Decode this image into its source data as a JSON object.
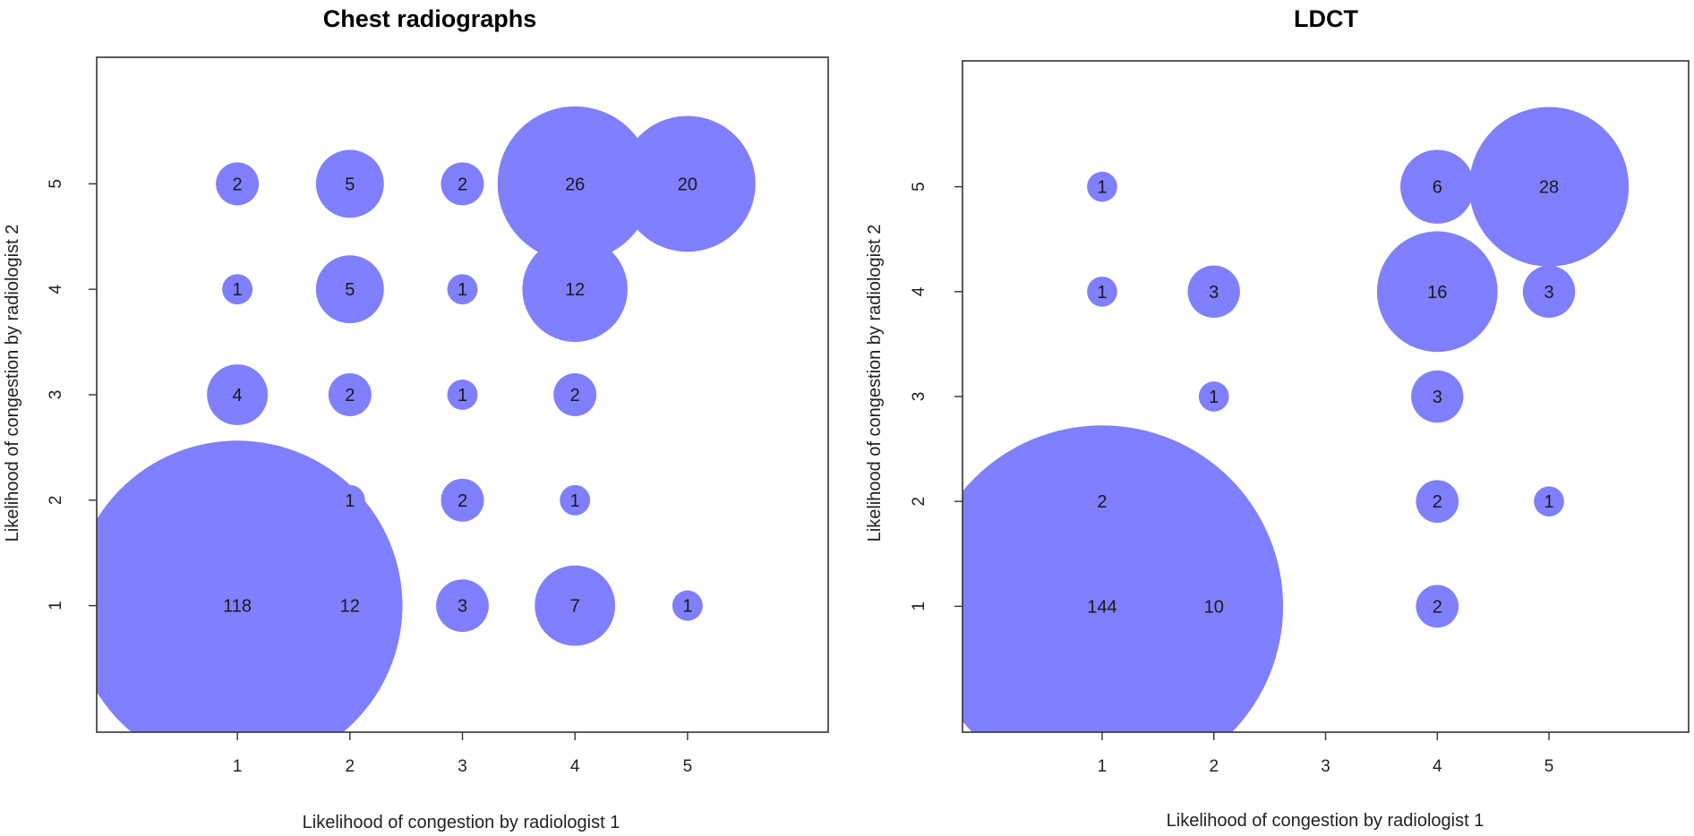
{
  "chart_data": [
    {
      "type": "bubble",
      "title": "Chest radiographs",
      "xlabel": "Likelihood of congestion by radiologist 1",
      "ylabel": "Likelihood of congestion by radiologist 2",
      "xticks": [
        1,
        2,
        3,
        4,
        5
      ],
      "yticks": [
        1,
        2,
        3,
        4,
        5
      ],
      "xlim": [
        -0.25,
        6.25
      ],
      "ylim": [
        -0.2,
        6.2
      ],
      "bubble_color": "#7f7fff",
      "points": [
        {
          "x": 1,
          "y": 5,
          "n": 2
        },
        {
          "x": 2,
          "y": 5,
          "n": 5
        },
        {
          "x": 3,
          "y": 5,
          "n": 2
        },
        {
          "x": 4,
          "y": 5,
          "n": 26
        },
        {
          "x": 5,
          "y": 5,
          "n": 20
        },
        {
          "x": 1,
          "y": 4,
          "n": 1
        },
        {
          "x": 2,
          "y": 4,
          "n": 5
        },
        {
          "x": 3,
          "y": 4,
          "n": 1
        },
        {
          "x": 4,
          "y": 4,
          "n": 12
        },
        {
          "x": 1,
          "y": 3,
          "n": 4
        },
        {
          "x": 2,
          "y": 3,
          "n": 2
        },
        {
          "x": 3,
          "y": 3,
          "n": 1
        },
        {
          "x": 4,
          "y": 3,
          "n": 2
        },
        {
          "x": 2,
          "y": 2,
          "n": 1
        },
        {
          "x": 3,
          "y": 2,
          "n": 2
        },
        {
          "x": 4,
          "y": 2,
          "n": 1
        },
        {
          "x": 1,
          "y": 1,
          "n": 118
        },
        {
          "x": 2,
          "y": 1,
          "n": 12
        },
        {
          "x": 3,
          "y": 1,
          "n": 3
        },
        {
          "x": 4,
          "y": 1,
          "n": 7
        },
        {
          "x": 5,
          "y": 1,
          "n": 1
        }
      ]
    },
    {
      "type": "bubble",
      "title": "LDCT",
      "xlabel": "Likelihood of congestion by radiologist 1",
      "ylabel": "Likelihood of congestion by radiologist 2",
      "xticks": [
        1,
        2,
        3,
        4,
        5
      ],
      "yticks": [
        1,
        2,
        3,
        4,
        5
      ],
      "xlim": [
        -0.25,
        6.25
      ],
      "ylim": [
        -0.2,
        6.2
      ],
      "bubble_color": "#7f7fff",
      "points": [
        {
          "x": 1,
          "y": 5,
          "n": 1
        },
        {
          "x": 4,
          "y": 5,
          "n": 6
        },
        {
          "x": 5,
          "y": 5,
          "n": 28
        },
        {
          "x": 1,
          "y": 4,
          "n": 1
        },
        {
          "x": 2,
          "y": 4,
          "n": 3
        },
        {
          "x": 4,
          "y": 4,
          "n": 16
        },
        {
          "x": 5,
          "y": 4,
          "n": 3
        },
        {
          "x": 2,
          "y": 3,
          "n": 1
        },
        {
          "x": 4,
          "y": 3,
          "n": 3
        },
        {
          "x": 1,
          "y": 2,
          "n": 2
        },
        {
          "x": 4,
          "y": 2,
          "n": 2
        },
        {
          "x": 5,
          "y": 2,
          "n": 1
        },
        {
          "x": 1,
          "y": 1,
          "n": 144
        },
        {
          "x": 2,
          "y": 1,
          "n": 10
        },
        {
          "x": 4,
          "y": 1,
          "n": 2
        }
      ]
    }
  ]
}
